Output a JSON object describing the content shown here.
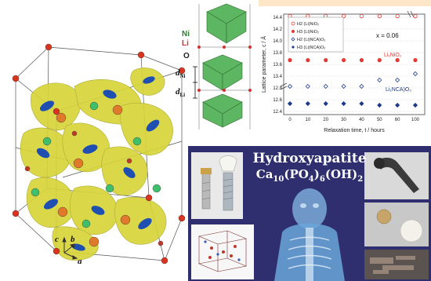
{
  "crystal": {
    "axis_c": "c",
    "axis_b": "b",
    "axis_a": "a"
  },
  "layered": {
    "label_ni": "Ni",
    "label_li": "Li",
    "label_o": "O",
    "label_dni": "d",
    "label_dni_sub": "Ni",
    "label_dli": "d",
    "label_dli_sub": "Li",
    "colors": {
      "ni": "#2e7d32",
      "li": "#d32f2f",
      "o": "#333333"
    }
  },
  "plot": {
    "ylabel": "Lattice parameter, c / Å",
    "xlabel": "Relaxation time, t / hours",
    "yticks": [
      "14.4",
      "14.2",
      "14.0",
      "13.8",
      "13.6",
      "13.4",
      "12.8",
      "12.6",
      "12.4"
    ],
    "xticks": [
      "0",
      "10",
      "20",
      "30",
      "40",
      "50",
      "60",
      "100"
    ],
    "legend": [
      "H2 (Li)NiO₂",
      "H3 (Li)NiO₂",
      "H2 (Li)NCA)O₂",
      "H3 (Li)NCA)O₂"
    ],
    "annotation": "x = 0.06",
    "label_linio2": "Li₁NiO₂",
    "label_lincao2": "Li₁NCA)O₂",
    "colors": {
      "series_red": "#e53935",
      "series_blue": "#1e3a8a",
      "accent": "#e53935"
    }
  },
  "chart_data": {
    "type": "scatter",
    "title": "",
    "xlabel": "Relaxation time, t / hours",
    "ylabel": "Lattice parameter, c / Å",
    "x": [
      0,
      10,
      20,
      30,
      40,
      50,
      60,
      100
    ],
    "series": [
      {
        "name": "H2 (Li)NiO₂",
        "values": [
          14.42,
          14.42,
          14.42,
          14.42,
          14.42,
          14.42,
          14.42,
          14.42
        ]
      },
      {
        "name": "H3 (Li)NiO₂",
        "values": [
          13.62,
          13.62,
          13.62,
          13.62,
          13.62,
          13.62,
          13.62,
          13.62
        ]
      },
      {
        "name": "H2 (Li)NCA)O₂",
        "values": [
          12.72,
          12.72,
          12.72,
          12.72,
          12.72,
          12.8,
          12.8,
          12.88
        ]
      },
      {
        "name": "H3 (Li)NCA)O₂",
        "values": [
          12.5,
          12.5,
          12.5,
          12.5,
          12.5,
          12.48,
          12.48,
          12.48
        ]
      }
    ]
  },
  "hydroxyapatite": {
    "title_line1": "Hydroxyapatite",
    "formula_ca": "Ca",
    "formula_ca_sub": "10",
    "formula_po": "(PO",
    "formula_po_sub": "4",
    "formula_po_close": ")",
    "formula_po_sub2": "6",
    "formula_oh": "(OH)",
    "formula_oh_sub": "2",
    "colors": {
      "bg": "#2f2f6f",
      "title": "#ffffff"
    }
  }
}
